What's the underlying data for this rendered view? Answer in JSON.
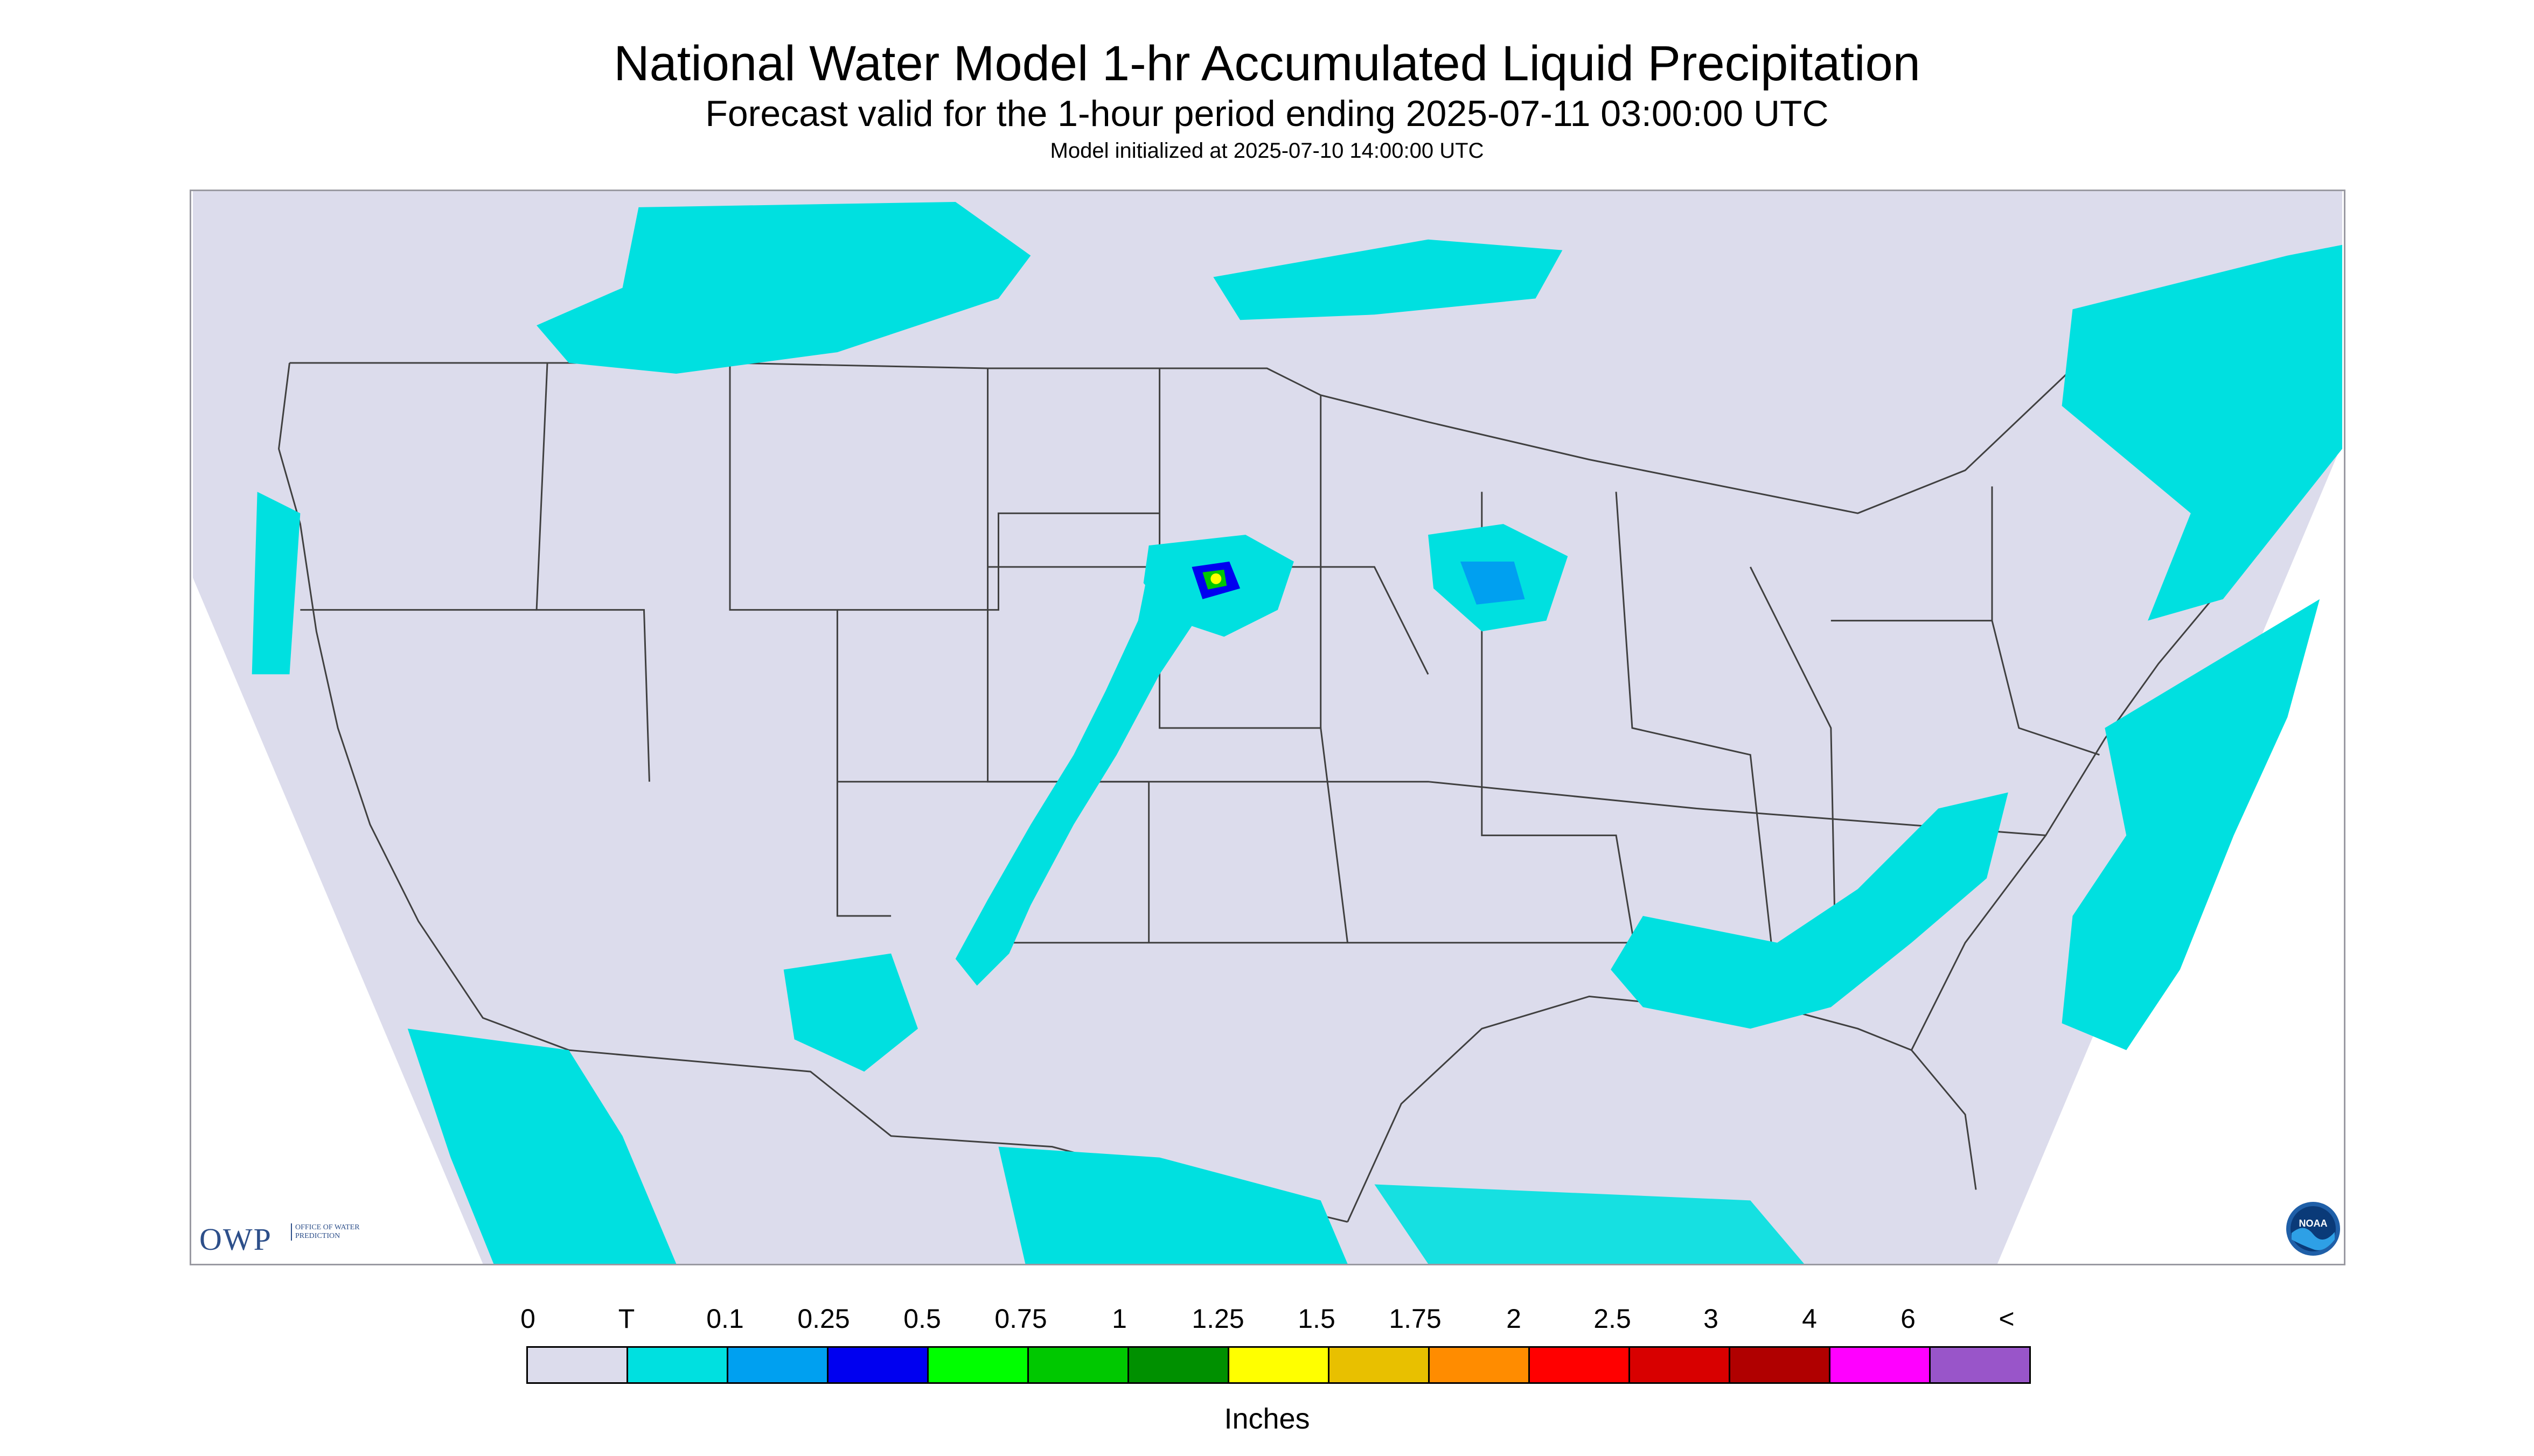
{
  "title": "National Water Model 1-hr Accumulated Liquid Precipitation",
  "subtitle": "Forecast valid for the 1-hour period ending 2025-07-11 03:00:00 UTC",
  "init_line": "Model initialized at 2025-07-10 14:00:00 UTC",
  "colors": {
    "background": "#dcdcec",
    "border": "#404040",
    "trace": "#00e0e0"
  },
  "logos": {
    "owp_mark": "OWP",
    "owp_sub": "OFFICE OF WATER PREDICTION",
    "noaa": "NOAA"
  },
  "legend": {
    "units": "Inches",
    "tick_labels": [
      "0",
      "T",
      "0.1",
      "0.25",
      "0.5",
      "0.75",
      "1",
      "1.25",
      "1.5",
      "1.75",
      "2",
      "2.5",
      "3",
      "4",
      "6",
      "<"
    ],
    "colors": [
      "#dcdcec",
      "#00e0e0",
      "#00a0f0",
      "#0000f0",
      "#00ff00",
      "#00c800",
      "#009000",
      "#ffff00",
      "#e8c000",
      "#ff8c00",
      "#ff0000",
      "#d80000",
      "#b00000",
      "#ff00ff",
      "#9955c9"
    ]
  }
}
